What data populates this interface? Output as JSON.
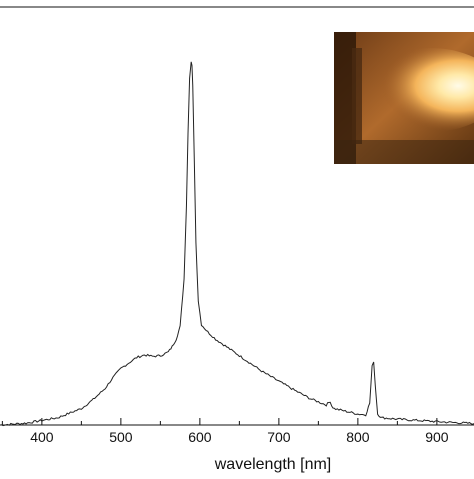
{
  "chart_data": {
    "type": "line",
    "title": "",
    "xlabel": "wavelength [nm]",
    "ylabel": "",
    "xlim": [
      347,
      947
    ],
    "ylim": [
      0,
      1
    ],
    "grid": false,
    "line_color": "#222222",
    "xticks": [
      400,
      500,
      600,
      700,
      800,
      900
    ],
    "xtick_labels": [
      "400",
      "500",
      "600",
      "700",
      "800",
      "900"
    ],
    "series": [
      {
        "x": [
          347,
          380,
          420,
          450,
          465,
          480,
          490,
          500,
          510,
          520,
          530,
          540,
          550,
          560,
          565,
          570,
          575,
          580,
          583,
          585,
          587,
          589,
          590,
          591,
          593,
          595,
          598,
          602,
          610,
          620,
          640,
          660,
          680,
          700,
          720,
          740,
          760,
          765,
          767,
          770,
          780,
          800,
          810,
          815,
          818,
          820,
          822,
          825,
          830,
          850,
          880,
          910,
          947
        ],
        "y": [
          0.0,
          0.005,
          0.02,
          0.045,
          0.07,
          0.1,
          0.13,
          0.155,
          0.17,
          0.185,
          0.192,
          0.188,
          0.19,
          0.2,
          0.215,
          0.235,
          0.27,
          0.4,
          0.6,
          0.8,
          0.95,
          0.995,
          0.985,
          0.93,
          0.72,
          0.5,
          0.34,
          0.275,
          0.255,
          0.235,
          0.205,
          0.175,
          0.145,
          0.12,
          0.095,
          0.072,
          0.055,
          0.065,
          0.052,
          0.045,
          0.04,
          0.03,
          0.028,
          0.06,
          0.16,
          0.175,
          0.11,
          0.03,
          0.02,
          0.016,
          0.012,
          0.008,
          0.004
        ]
      }
    ]
  }
}
